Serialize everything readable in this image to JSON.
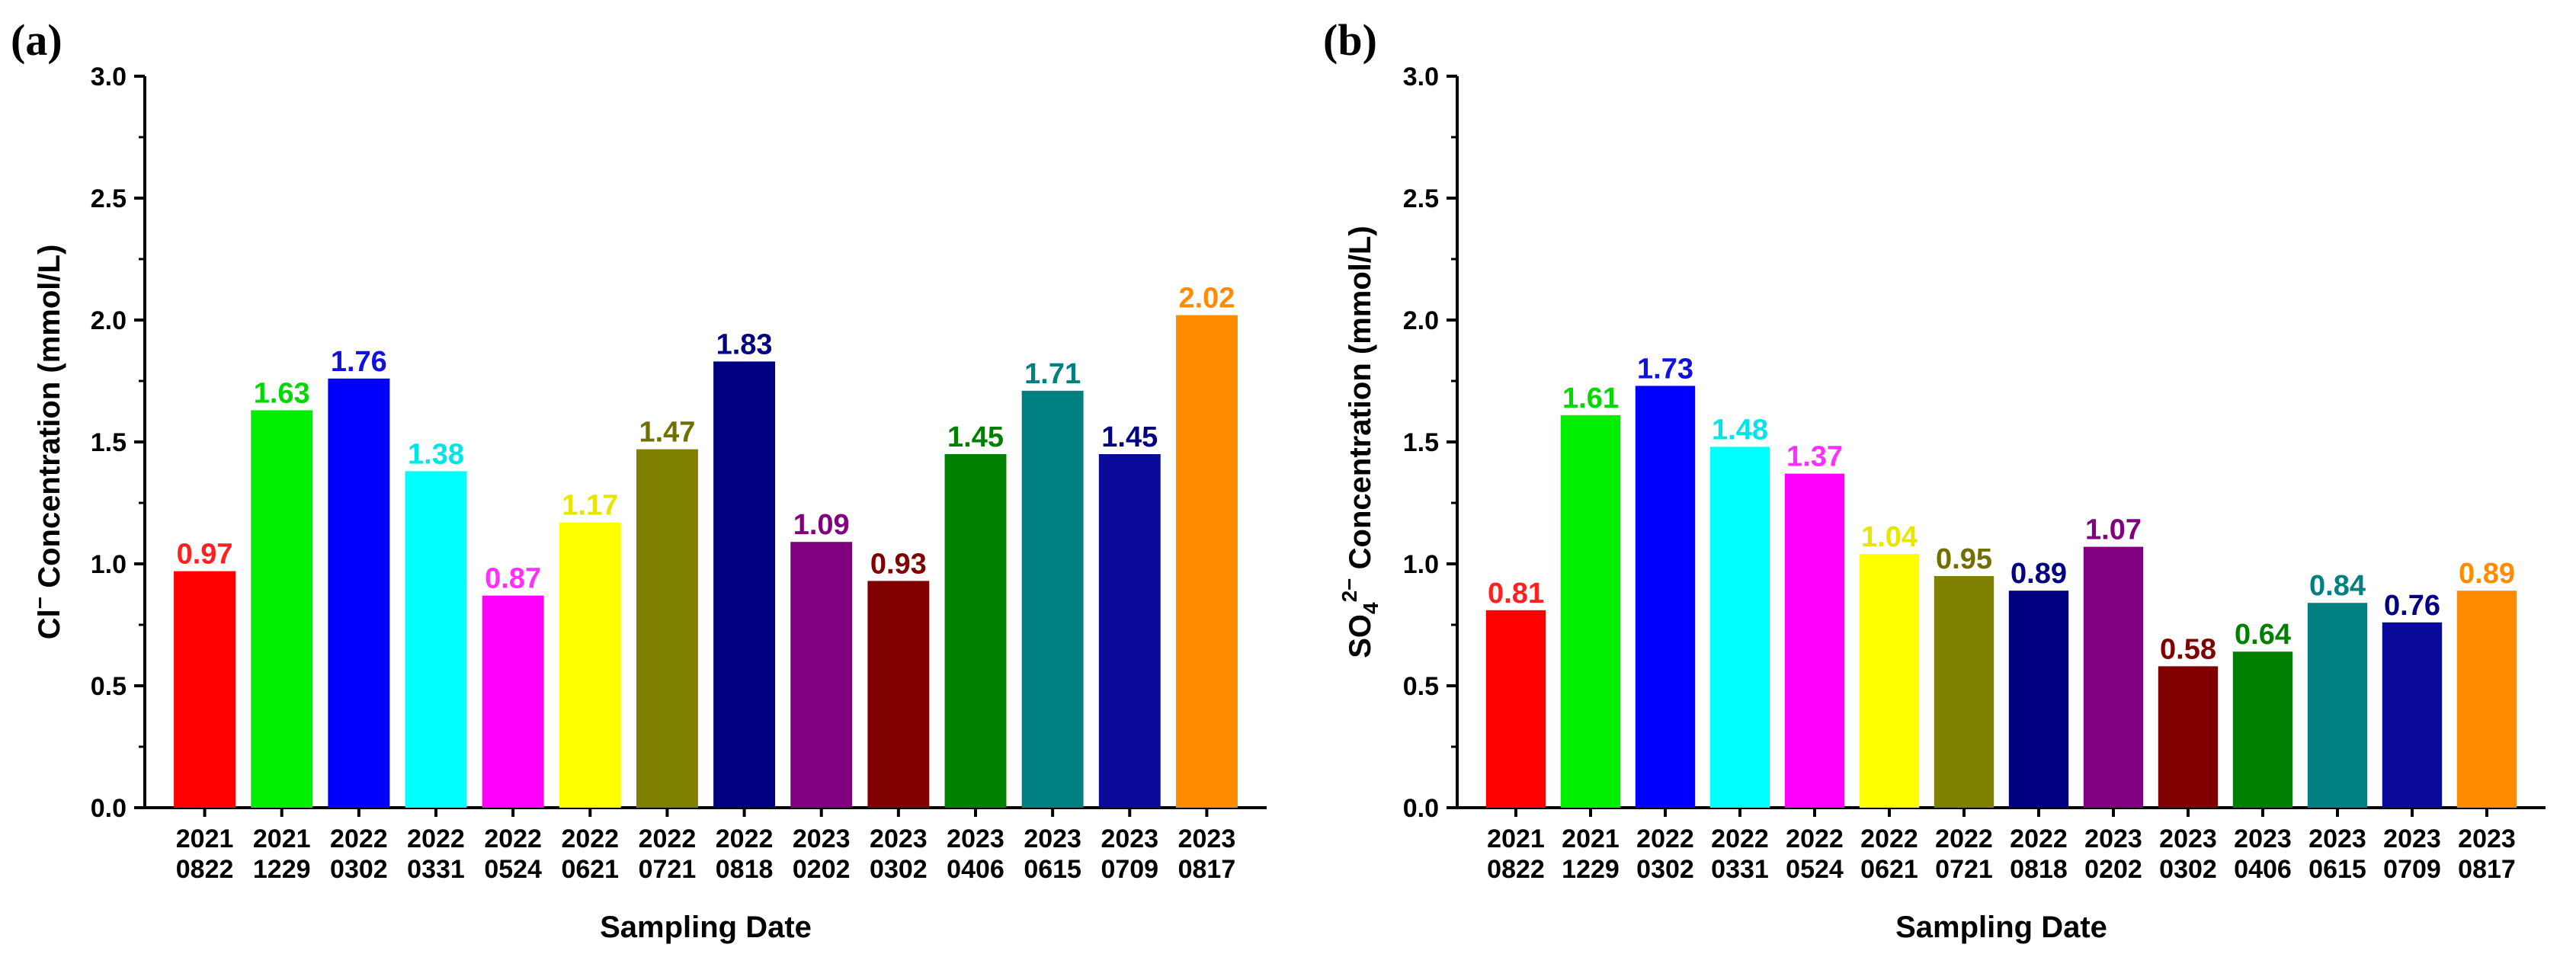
{
  "chart_data": [
    {
      "type": "bar",
      "panel_label": "(a)",
      "title": "",
      "xlabel": "Sampling Date",
      "ylabel_prefix": "Cl",
      "ylabel_sup": "−",
      "ylabel_suffix": " Concentration (mmol/L)",
      "ylim": [
        0,
        3.0
      ],
      "yticks": [
        "0.0",
        "0.5",
        "1.0",
        "1.5",
        "2.0",
        "2.5",
        "3.0"
      ],
      "categories": [
        [
          "2021",
          "0822"
        ],
        [
          "2021",
          "1229"
        ],
        [
          "2022",
          "0302"
        ],
        [
          "2022",
          "0331"
        ],
        [
          "2022",
          "0524"
        ],
        [
          "2022",
          "0621"
        ],
        [
          "2022",
          "0721"
        ],
        [
          "2022",
          "0818"
        ],
        [
          "2023",
          "0202"
        ],
        [
          "2023",
          "0302"
        ],
        [
          "2023",
          "0406"
        ],
        [
          "2023",
          "0615"
        ],
        [
          "2023",
          "0709"
        ],
        [
          "2023",
          "0817"
        ]
      ],
      "values": [
        0.97,
        1.63,
        1.76,
        1.38,
        0.87,
        1.17,
        1.47,
        1.83,
        1.09,
        0.93,
        1.45,
        1.71,
        1.45,
        2.02
      ],
      "value_labels": [
        "0.97",
        "1.63",
        "1.76",
        "1.38",
        "0.87",
        "1.17",
        "1.47",
        "1.83",
        "1.09",
        "0.93",
        "1.45",
        "1.71",
        "1.45",
        "2.02"
      ],
      "bar_colors": [
        "#ff0000",
        "#00ee00",
        "#0000ff",
        "#00ffff",
        "#ff00ff",
        "#ffff00",
        "#808000",
        "#000080",
        "#800080",
        "#800000",
        "#008000",
        "#008080",
        "#0a0a9a",
        "#ff8c00"
      ],
      "label_colors": [
        "#ff2020",
        "#00d800",
        "#1010e0",
        "#00e5e5",
        "#ff30ff",
        "#e6e600",
        "#707000",
        "#000080",
        "#800080",
        "#800000",
        "#008000",
        "#008080",
        "#000080",
        "#ff8c00"
      ]
    },
    {
      "type": "bar",
      "panel_label": "(b)",
      "title": "",
      "xlabel": "Sampling Date",
      "ylabel_prefix": "SO",
      "ylabel_sub": "4",
      "ylabel_sup": "2−",
      "ylabel_suffix": " Concentration (mmol/L)",
      "ylim": [
        0,
        3.0
      ],
      "yticks": [
        "0.0",
        "0.5",
        "1.0",
        "1.5",
        "2.0",
        "2.5",
        "3.0"
      ],
      "categories": [
        [
          "2021",
          "0822"
        ],
        [
          "2021",
          "1229"
        ],
        [
          "2022",
          "0302"
        ],
        [
          "2022",
          "0331"
        ],
        [
          "2022",
          "0524"
        ],
        [
          "2022",
          "0621"
        ],
        [
          "2022",
          "0721"
        ],
        [
          "2022",
          "0818"
        ],
        [
          "2023",
          "0202"
        ],
        [
          "2023",
          "0302"
        ],
        [
          "2023",
          "0406"
        ],
        [
          "2023",
          "0615"
        ],
        [
          "2023",
          "0709"
        ],
        [
          "2023",
          "0817"
        ]
      ],
      "values": [
        0.81,
        1.61,
        1.73,
        1.48,
        1.37,
        1.04,
        0.95,
        0.89,
        1.07,
        0.58,
        0.64,
        0.84,
        0.76,
        0.89
      ],
      "value_labels": [
        "0.81",
        "1.61",
        "1.73",
        "1.48",
        "1.37",
        "1.04",
        "0.95",
        "0.89",
        "1.07",
        "0.58",
        "0.64",
        "0.84",
        "0.76",
        "0.89"
      ],
      "bar_colors": [
        "#ff0000",
        "#00ee00",
        "#0000ff",
        "#00ffff",
        "#ff00ff",
        "#ffff00",
        "#808000",
        "#000080",
        "#800080",
        "#800000",
        "#008000",
        "#008080",
        "#0a0a9a",
        "#ff8c00"
      ],
      "label_colors": [
        "#ff2020",
        "#00d800",
        "#1010e0",
        "#00e5e5",
        "#ff30ff",
        "#e6e600",
        "#707000",
        "#000080",
        "#800080",
        "#800000",
        "#008000",
        "#008080",
        "#000080",
        "#ff8c00"
      ]
    }
  ]
}
